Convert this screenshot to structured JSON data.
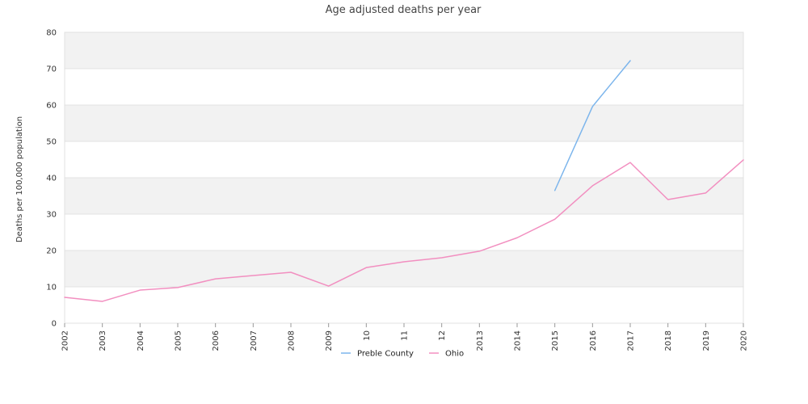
{
  "chart_data": {
    "type": "line",
    "title": "Age adjusted deaths per year",
    "xlabel": "",
    "ylabel": "Deaths per 100,000 population",
    "ylim": [
      0,
      80
    ],
    "yticks": [
      0,
      10,
      20,
      30,
      40,
      50,
      60,
      70,
      80
    ],
    "categories": [
      "2002",
      "2003",
      "2004",
      "2005",
      "2006",
      "2007",
      "2008",
      "2009",
      "10",
      "11",
      "12",
      "2013",
      "2014",
      "2015",
      "2016",
      "2017",
      "2018",
      "2019",
      "2020"
    ],
    "grid": true,
    "legend_position": "bottom",
    "series": [
      {
        "name": "Preble County",
        "color": "#7cb5ec",
        "values": [
          null,
          null,
          null,
          null,
          null,
          null,
          null,
          null,
          null,
          null,
          null,
          null,
          null,
          36.5,
          59.6,
          72.2,
          null,
          null,
          null
        ]
      },
      {
        "name": "Ohio",
        "color": "#f28fc0",
        "values": [
          7.1,
          6.0,
          9.1,
          9.8,
          12.2,
          13.1,
          14.0,
          10.2,
          15.3,
          16.9,
          18.0,
          19.8,
          23.5,
          28.6,
          37.8,
          44.2,
          34.0,
          35.8,
          44.9
        ]
      }
    ]
  }
}
